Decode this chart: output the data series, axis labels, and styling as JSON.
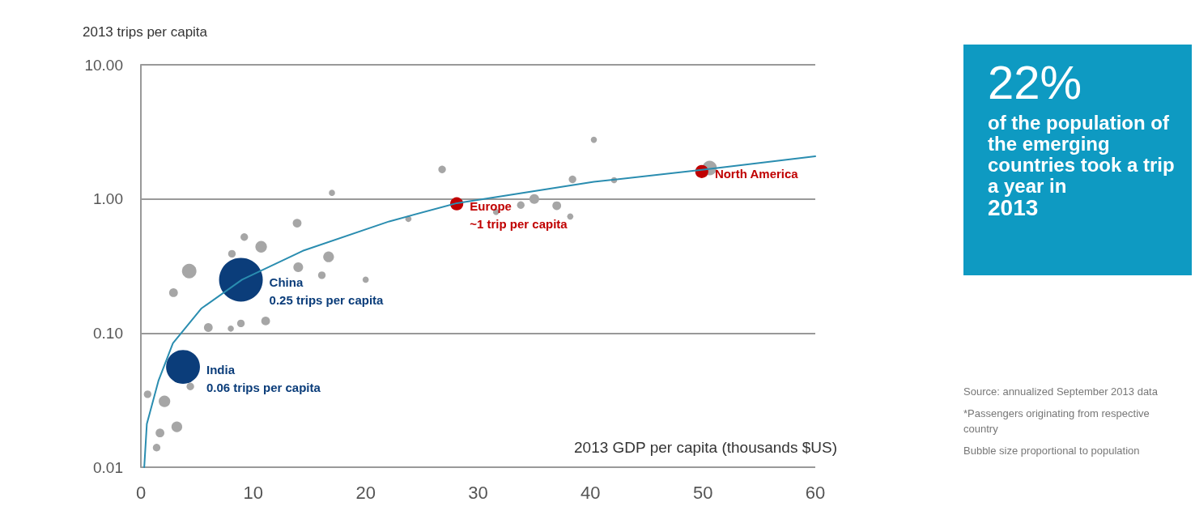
{
  "chart_data": {
    "type": "bubble",
    "xlabel": "2013 GDP per capita (thousands $US)",
    "ylabel": "2013 trips per capita",
    "xlim": [
      0,
      60
    ],
    "xticks": [
      0,
      10,
      20,
      30,
      40,
      50,
      60
    ],
    "ylim": [
      0.01,
      10
    ],
    "yticks": [
      {
        "value": 0.01,
        "label": "0.01"
      },
      {
        "value": 0.1,
        "label": "0.10"
      },
      {
        "value": 1,
        "label": "1.00"
      },
      {
        "value": 10,
        "label": "10.00"
      }
    ],
    "log": "y",
    "grid": "y",
    "marker": "circle",
    "series": [
      {
        "color": "#a6a6a6",
        "x": [
          26.8,
          17.0,
          13.9,
          9.2,
          10.7,
          8.1,
          16.7,
          14.0,
          16.1,
          20.0,
          4.3,
          2.9,
          6.0,
          8.0,
          8.9,
          11.1,
          4.4,
          2.1,
          0.6,
          3.2,
          1.7,
          1.4,
          23.8,
          40.3,
          38.4,
          42.1,
          35.0,
          33.8,
          37.0,
          31.6,
          38.2,
          50.6
        ],
        "values": [
          1.66,
          1.11,
          0.66,
          0.52,
          0.44,
          0.39,
          0.37,
          0.31,
          0.27,
          0.25,
          0.29,
          0.2,
          0.11,
          0.108,
          0.118,
          0.123,
          0.04,
          0.031,
          0.035,
          0.02,
          0.018,
          0.014,
          0.71,
          2.76,
          1.4,
          1.38,
          1.0,
          0.9,
          0.89,
          0.8,
          0.74,
          1.7
        ],
        "sizes": [
          0.03,
          0.02,
          0.04,
          0.03,
          0.07,
          0.03,
          0.06,
          0.05,
          0.03,
          0.02,
          0.11,
          0.04,
          0.04,
          0.02,
          0.03,
          0.04,
          0.03,
          0.07,
          0.03,
          0.06,
          0.04,
          0.03,
          0.02,
          0.02,
          0.03,
          0.02,
          0.05,
          0.03,
          0.04,
          0.02,
          0.02,
          0.11
        ]
      },
      {
        "color": "#0b3d7a",
        "x": [
          3.75,
          8.9
        ],
        "values": [
          0.056,
          0.25
        ],
        "sizes": [
          0.6,
          1
        ]
      },
      {
        "color": "#c00000",
        "x": [
          28.1,
          49.9
        ],
        "values": [
          0.92,
          1.6
        ],
        "sizes": [
          0.09,
          0.09
        ]
      },
      {
        "type": "line",
        "color": "#2a8db0",
        "marker": "none",
        "x": [
          0.3,
          0.53,
          1.56,
          2.85,
          5.4,
          9.0,
          14.4,
          22.1,
          28.1,
          40.3,
          49.9,
          60
        ],
        "values": [
          0.01,
          0.021,
          0.044,
          0.084,
          0.153,
          0.25,
          0.41,
          0.68,
          0.93,
          1.34,
          1.65,
          2.08
        ]
      }
    ],
    "annotations": [
      {
        "text": "India\n0.06 trips per capita",
        "x": 3.75,
        "y": 0.056
      },
      {
        "text": "China\n0.25 trips per capita",
        "x": 8.9,
        "y": 0.25
      },
      {
        "text": "Europe\n~1 trip per capita",
        "x": 28.1,
        "y": 0.92
      },
      {
        "text": "North America",
        "x": 49.9,
        "y": 1.6
      },
      "22%",
      "of the population of the emerging countries took a trip a year in",
      "2013",
      "Source: annualized September 2013 data",
      "*Passengers originating from respective country",
      "Bubble size proportional to population"
    ]
  }
}
